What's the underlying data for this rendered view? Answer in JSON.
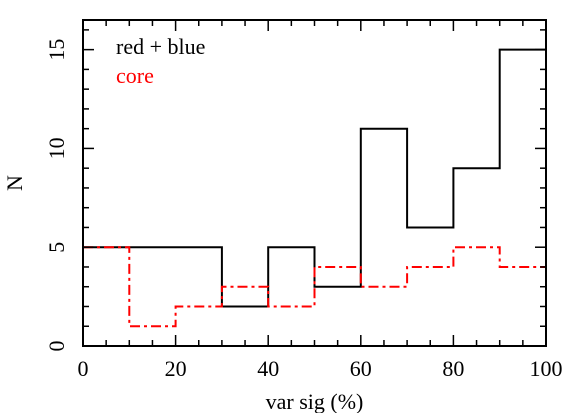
{
  "chart_data": {
    "type": "line",
    "xlabel": "var sig (%)",
    "ylabel": "N",
    "xlim": [
      0,
      100
    ],
    "ylim": [
      0,
      16.5
    ],
    "x_ticks": [
      0,
      20,
      40,
      60,
      80,
      100
    ],
    "y_ticks": [
      0,
      5,
      10,
      15
    ],
    "bin_edges": [
      0,
      10,
      20,
      30,
      40,
      50,
      60,
      70,
      80,
      90,
      100
    ],
    "grid": false,
    "legend_position": "top-left",
    "series": [
      {
        "name": "red + blue",
        "color": "#000000",
        "style": "solid",
        "values": [
          5,
          5,
          5,
          2,
          5,
          3,
          11,
          6,
          9,
          15
        ]
      },
      {
        "name": "core",
        "color": "#ff0000",
        "style": "dash-dot",
        "values": [
          5,
          1,
          2,
          3,
          2,
          4,
          3,
          4,
          5,
          4
        ]
      }
    ]
  }
}
